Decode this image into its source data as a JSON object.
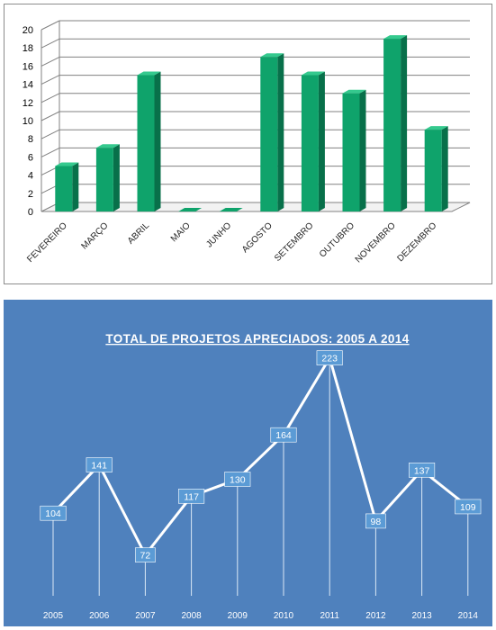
{
  "charts": [
    {
      "chart_data": {
        "type": "bar",
        "title": "",
        "xlabel": "",
        "ylabel": "",
        "categories": [
          "FEVEREIRO",
          "MARÇO",
          "ABRIL",
          "MAIO",
          "JUNHO",
          "AGOSTO",
          "SETEMBRO",
          "OUTUBRO",
          "NOVEMBRO",
          "DEZEMBRO"
        ],
        "values": [
          5,
          7,
          15,
          0,
          0,
          17,
          15,
          13,
          19,
          9
        ],
        "ylim": [
          0,
          20
        ],
        "yticks": [
          0,
          2,
          4,
          6,
          8,
          10,
          12,
          14,
          16,
          18,
          20
        ],
        "grid": true,
        "legend": "none",
        "style": "3d",
        "colors": {
          "bar": "#0fa36b",
          "bar_side": "#08704a",
          "bar_top": "#35c98e",
          "grid": "#808080"
        }
      }
    },
    {
      "chart_data": {
        "type": "line",
        "title": "TOTAL DE PROJETOS  APRECIADOS: 2005 A 2014",
        "xlabel": "",
        "ylabel": "",
        "x": [
          "2005",
          "2006",
          "2007",
          "2008",
          "2009",
          "2010",
          "2011",
          "2012",
          "2013",
          "2014"
        ],
        "values": [
          104,
          141,
          72,
          117,
          130,
          164,
          223,
          98,
          137,
          109
        ],
        "data_labels": true,
        "grid": false,
        "legend": "none",
        "colors": {
          "background": "#4f81bd",
          "line": "#ffffff",
          "label_box": "#5b9bd5"
        }
      }
    }
  ]
}
